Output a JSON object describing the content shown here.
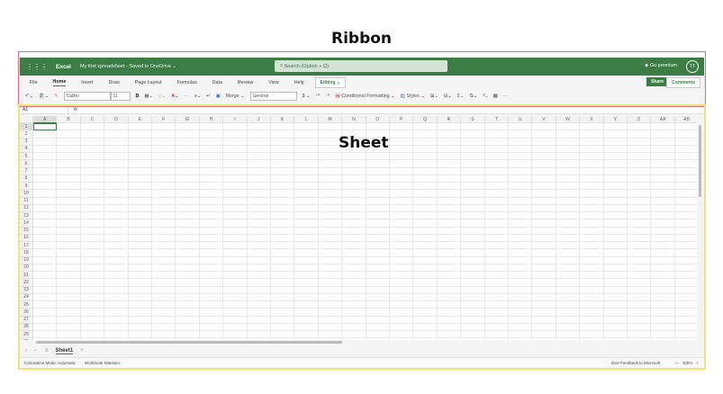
{
  "annotations": {
    "ribbon": "Ribbon",
    "sheet": "Sheet"
  },
  "topbar": {
    "app": "Excel",
    "document": "My first spreadsheet - Saved to OneDrive ⌄",
    "search_placeholder": "Search (Option + Q)",
    "premium": "Go premium",
    "avatar": "TT"
  },
  "tabs": [
    "File",
    "Home",
    "Insert",
    "Draw",
    "Page Layout",
    "Formulas",
    "Data",
    "Review",
    "View",
    "Help"
  ],
  "active_tab": "Home",
  "editing": "Editing ⌄",
  "share": "Share",
  "comments": "Comments",
  "toolbar": {
    "font": "Calibri",
    "size": "11",
    "bold": "B",
    "merge": "Merge ⌄",
    "number_format": "General",
    "currency": "$ ⌄",
    "conditional": "Conditional Formatting ⌄",
    "styles": "Styles ⌄",
    "more": "···"
  },
  "formula_bar": {
    "name_box": "A1",
    "fx": "fx"
  },
  "columns": [
    "A",
    "B",
    "C",
    "D",
    "E",
    "F",
    "G",
    "H",
    "I",
    "J",
    "K",
    "L",
    "M",
    "N",
    "O",
    "P",
    "Q",
    "R",
    "S",
    "T",
    "U",
    "V",
    "W",
    "X",
    "Y",
    "Z",
    "AA",
    "AB"
  ],
  "rows": [
    "1",
    "2",
    "3",
    "4",
    "5",
    "6",
    "7",
    "8",
    "9",
    "10",
    "11",
    "12",
    "13",
    "14",
    "15",
    "16",
    "17",
    "18",
    "19",
    "20",
    "21",
    "22",
    "23",
    "24",
    "25",
    "26",
    "27",
    "28",
    "29",
    "30"
  ],
  "sheet_tab": "Sheet1",
  "status": {
    "calc": "Calculation Mode: Automatic",
    "stats": "Workbook Statistics",
    "feedback": "Give Feedback to Microsoft",
    "zoom": "100%"
  },
  "colors": {
    "brand": "#3b7d45",
    "ribbon_outline": "#e06c8a",
    "sheet_outline": "#ece57a"
  }
}
